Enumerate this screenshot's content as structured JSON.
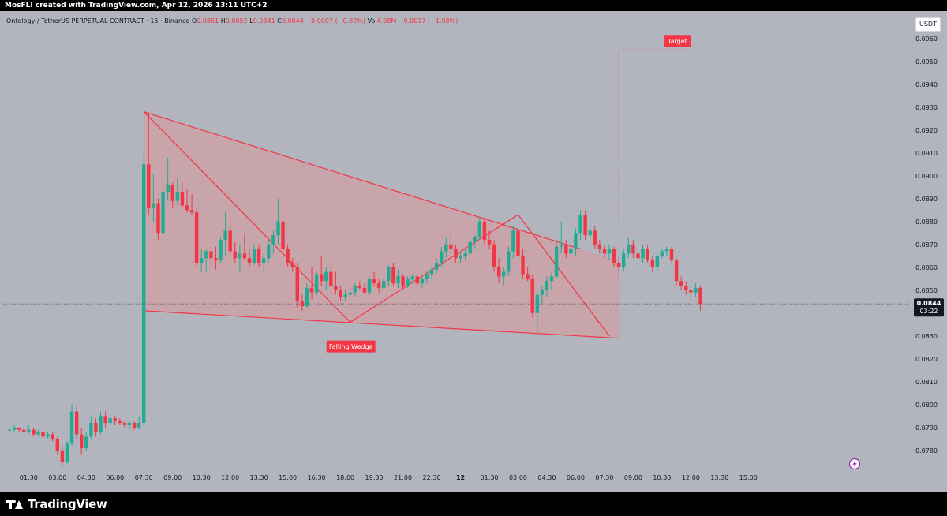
{
  "header": {
    "title": "MosFLI created with TradingView.com, Apr 12, 2026 13:11 UTC+2"
  },
  "legend": {
    "symbol": "Ontology / TetherUS PERPETUAL CONTRACT · 15 · Binance",
    "o_label": "O",
    "o_value": "0.0851",
    "h_label": "H",
    "h_value": "0.0852",
    "l_label": "L",
    "l_value": "0.0841",
    "c_label": "C",
    "c_value": "0.0844",
    "change": "−0.0007 (−0.82%)",
    "vol_label": "Vol",
    "vol_value": "4.98M",
    "vol_change": "−0.0017 (−1.98%)"
  },
  "currency": "USDT",
  "current_price": {
    "price": "0.0844",
    "countdown": "03:22"
  },
  "annotations": {
    "falling_wedge": "Falling Wedge",
    "target": "Target"
  },
  "footer": {
    "brand": "TradingView"
  },
  "colors": {
    "up": "#22ab94",
    "down": "#f23645",
    "background": "#b2b5be",
    "wedge_fill": "#cf9fa4",
    "wedge_line": "#f23645",
    "label_bg": "#f23645"
  },
  "icons": {
    "logo": "tradingview-logo-icon",
    "replay": "lightning-circle-icon"
  },
  "chart_data": {
    "type": "candlestick",
    "title": "",
    "xlabel": "",
    "ylabel": "",
    "y_axis_side": "right",
    "ylim": [
      0.0772,
      0.0972
    ],
    "y_ticks": [
      "0.0780",
      "0.0790",
      "0.0800",
      "0.0810",
      "0.0820",
      "0.0830",
      "0.0840",
      "0.0850",
      "0.0860",
      "0.0870",
      "0.0880",
      "0.0890",
      "0.0900",
      "0.0910",
      "0.0920",
      "0.0930",
      "0.0940",
      "0.0950",
      "0.0960"
    ],
    "x_tick_labels": [
      "01:30",
      "03:00",
      "04:30",
      "06:00",
      "07:30",
      "09:00",
      "10:30",
      "12:00",
      "13:30",
      "15:00",
      "16:30",
      "18:00",
      "19:30",
      "21:00",
      "22:30",
      "12",
      "01:30",
      "03:00",
      "04:30",
      "06:00",
      "07:30",
      "09:00",
      "10:30",
      "12:00",
      "13:30",
      "15:00"
    ],
    "x_tick_positions_index": [
      4,
      10,
      16,
      22,
      28,
      34,
      40,
      46,
      52,
      58,
      64,
      70,
      76,
      82,
      88,
      94,
      100,
      106,
      112,
      118,
      124,
      130,
      136,
      142,
      148,
      154
    ],
    "grid": false,
    "current_price": 0.0844,
    "candles": [
      [
        0.0789,
        0.079,
        0.0788,
        0.0789
      ],
      [
        0.0789,
        0.0791,
        0.0788,
        0.079
      ],
      [
        0.079,
        0.079,
        0.0788,
        0.0789
      ],
      [
        0.0789,
        0.079,
        0.0788,
        0.0788
      ],
      [
        0.0788,
        0.0791,
        0.0787,
        0.0789
      ],
      [
        0.0789,
        0.079,
        0.0786,
        0.0787
      ],
      [
        0.0787,
        0.0789,
        0.0786,
        0.0788
      ],
      [
        0.0788,
        0.0789,
        0.0785,
        0.0786
      ],
      [
        0.0786,
        0.0788,
        0.0785,
        0.0787
      ],
      [
        0.0787,
        0.0788,
        0.0784,
        0.0785
      ],
      [
        0.0785,
        0.0786,
        0.0778,
        0.078
      ],
      [
        0.078,
        0.0782,
        0.0773,
        0.0775
      ],
      [
        0.0775,
        0.0784,
        0.0774,
        0.0783
      ],
      [
        0.0783,
        0.08,
        0.0782,
        0.0797
      ],
      [
        0.0797,
        0.0799,
        0.0785,
        0.0787
      ],
      [
        0.0787,
        0.079,
        0.0778,
        0.0781
      ],
      [
        0.0781,
        0.0788,
        0.078,
        0.0786
      ],
      [
        0.0786,
        0.0795,
        0.0785,
        0.0792
      ],
      [
        0.0792,
        0.0794,
        0.0786,
        0.0788
      ],
      [
        0.0788,
        0.0797,
        0.0787,
        0.0795
      ],
      [
        0.0795,
        0.0797,
        0.079,
        0.0792
      ],
      [
        0.0792,
        0.0796,
        0.0791,
        0.0794
      ],
      [
        0.0794,
        0.0795,
        0.0791,
        0.0793
      ],
      [
        0.0793,
        0.0794,
        0.0791,
        0.0792
      ],
      [
        0.0792,
        0.0793,
        0.079,
        0.0791
      ],
      [
        0.0791,
        0.0793,
        0.0789,
        0.0792
      ],
      [
        0.0792,
        0.0793,
        0.0789,
        0.079
      ],
      [
        0.079,
        0.0795,
        0.0789,
        0.0792
      ],
      [
        0.0792,
        0.091,
        0.0791,
        0.0905
      ],
      [
        0.0905,
        0.0927,
        0.0883,
        0.0886
      ],
      [
        0.0886,
        0.0901,
        0.088,
        0.0888
      ],
      [
        0.0888,
        0.089,
        0.0872,
        0.0875
      ],
      [
        0.0875,
        0.0897,
        0.0874,
        0.0893
      ],
      [
        0.0893,
        0.0908,
        0.0889,
        0.0896
      ],
      [
        0.0896,
        0.0897,
        0.0886,
        0.0889
      ],
      [
        0.0889,
        0.0899,
        0.0887,
        0.0893
      ],
      [
        0.0893,
        0.0897,
        0.0886,
        0.0887
      ],
      [
        0.0887,
        0.0894,
        0.0884,
        0.0885
      ],
      [
        0.0885,
        0.0892,
        0.0883,
        0.0884
      ],
      [
        0.0884,
        0.0886,
        0.086,
        0.0862
      ],
      [
        0.0862,
        0.0868,
        0.0858,
        0.0864
      ],
      [
        0.0864,
        0.0868,
        0.0858,
        0.0867
      ],
      [
        0.0867,
        0.0869,
        0.0861,
        0.0864
      ],
      [
        0.0864,
        0.0869,
        0.0859,
        0.0863
      ],
      [
        0.0863,
        0.0873,
        0.0862,
        0.0872
      ],
      [
        0.0872,
        0.0884,
        0.0865,
        0.0876
      ],
      [
        0.0876,
        0.0881,
        0.0865,
        0.0867
      ],
      [
        0.0867,
        0.0871,
        0.0862,
        0.0864
      ],
      [
        0.0864,
        0.087,
        0.0858,
        0.0866
      ],
      [
        0.0866,
        0.0875,
        0.0863,
        0.0864
      ],
      [
        0.0864,
        0.0868,
        0.086,
        0.0862
      ],
      [
        0.0862,
        0.087,
        0.0861,
        0.0868
      ],
      [
        0.0868,
        0.087,
        0.086,
        0.0862
      ],
      [
        0.0862,
        0.0866,
        0.0858,
        0.0864
      ],
      [
        0.0864,
        0.0872,
        0.0862,
        0.087
      ],
      [
        0.087,
        0.0876,
        0.0866,
        0.0874
      ],
      [
        0.0874,
        0.089,
        0.087,
        0.088
      ],
      [
        0.088,
        0.0882,
        0.0866,
        0.0868
      ],
      [
        0.0868,
        0.087,
        0.086,
        0.0862
      ],
      [
        0.0862,
        0.0864,
        0.0858,
        0.086
      ],
      [
        0.086,
        0.0862,
        0.0842,
        0.0845
      ],
      [
        0.0845,
        0.0848,
        0.0841,
        0.0843
      ],
      [
        0.0843,
        0.0853,
        0.0842,
        0.0851
      ],
      [
        0.0851,
        0.086,
        0.0846,
        0.0849
      ],
      [
        0.0849,
        0.0858,
        0.0848,
        0.0857
      ],
      [
        0.0857,
        0.0865,
        0.0852,
        0.0854
      ],
      [
        0.0854,
        0.086,
        0.085,
        0.0858
      ],
      [
        0.0858,
        0.0861,
        0.0848,
        0.0852
      ],
      [
        0.0852,
        0.0858,
        0.0848,
        0.085
      ],
      [
        0.085,
        0.0852,
        0.0845,
        0.0847
      ],
      [
        0.0847,
        0.085,
        0.0845,
        0.0848
      ],
      [
        0.0848,
        0.0851,
        0.0846,
        0.0849
      ],
      [
        0.0849,
        0.0853,
        0.0847,
        0.0852
      ],
      [
        0.0852,
        0.0854,
        0.085,
        0.0851
      ],
      [
        0.0851,
        0.0853,
        0.0848,
        0.0849
      ],
      [
        0.0849,
        0.0856,
        0.0848,
        0.0855
      ],
      [
        0.0855,
        0.0858,
        0.0852,
        0.0853
      ],
      [
        0.0853,
        0.0855,
        0.0849,
        0.0851
      ],
      [
        0.0851,
        0.0855,
        0.085,
        0.0854
      ],
      [
        0.0854,
        0.0861,
        0.0852,
        0.086
      ],
      [
        0.086,
        0.0862,
        0.0852,
        0.0853
      ],
      [
        0.0853,
        0.0859,
        0.0851,
        0.0856
      ],
      [
        0.0856,
        0.0857,
        0.085,
        0.0852
      ],
      [
        0.0852,
        0.0856,
        0.0851,
        0.0855
      ],
      [
        0.0855,
        0.0857,
        0.0853,
        0.0856
      ],
      [
        0.0856,
        0.0857,
        0.0852,
        0.0853
      ],
      [
        0.0853,
        0.0856,
        0.0851,
        0.0855
      ],
      [
        0.0855,
        0.0858,
        0.0853,
        0.0857
      ],
      [
        0.0857,
        0.086,
        0.0855,
        0.0859
      ],
      [
        0.0859,
        0.0864,
        0.0857,
        0.0862
      ],
      [
        0.0862,
        0.0869,
        0.086,
        0.0867
      ],
      [
        0.0867,
        0.0873,
        0.0864,
        0.087
      ],
      [
        0.087,
        0.0876,
        0.0866,
        0.0868
      ],
      [
        0.0868,
        0.087,
        0.0862,
        0.0864
      ],
      [
        0.0864,
        0.0867,
        0.0862,
        0.0865
      ],
      [
        0.0865,
        0.0868,
        0.0863,
        0.0866
      ],
      [
        0.0866,
        0.0872,
        0.0865,
        0.0871
      ],
      [
        0.0871,
        0.0874,
        0.0868,
        0.0873
      ],
      [
        0.0873,
        0.0882,
        0.0872,
        0.088
      ],
      [
        0.088,
        0.0882,
        0.087,
        0.0872
      ],
      [
        0.0872,
        0.0876,
        0.0868,
        0.087
      ],
      [
        0.087,
        0.0872,
        0.0858,
        0.086
      ],
      [
        0.086,
        0.0864,
        0.0853,
        0.0856
      ],
      [
        0.0856,
        0.086,
        0.0852,
        0.0858
      ],
      [
        0.0858,
        0.0869,
        0.0856,
        0.0867
      ],
      [
        0.0867,
        0.0878,
        0.0864,
        0.0876
      ],
      [
        0.0876,
        0.0878,
        0.0863,
        0.0865
      ],
      [
        0.0865,
        0.0868,
        0.0855,
        0.0857
      ],
      [
        0.0857,
        0.086,
        0.0854,
        0.0855
      ],
      [
        0.0855,
        0.0857,
        0.0838,
        0.084
      ],
      [
        0.084,
        0.085,
        0.0831,
        0.0848
      ],
      [
        0.0848,
        0.0852,
        0.0844,
        0.085
      ],
      [
        0.085,
        0.0856,
        0.0847,
        0.0854
      ],
      [
        0.0854,
        0.0858,
        0.085,
        0.0856
      ],
      [
        0.0856,
        0.0872,
        0.0855,
        0.0869
      ],
      [
        0.0869,
        0.088,
        0.0866,
        0.087
      ],
      [
        0.087,
        0.0872,
        0.0864,
        0.0866
      ],
      [
        0.0866,
        0.087,
        0.086,
        0.0868
      ],
      [
        0.0868,
        0.0877,
        0.0865,
        0.0875
      ],
      [
        0.0875,
        0.0885,
        0.0872,
        0.0883
      ],
      [
        0.0883,
        0.0885,
        0.0872,
        0.0874
      ],
      [
        0.0874,
        0.088,
        0.087,
        0.0876
      ],
      [
        0.0876,
        0.0878,
        0.0868,
        0.087
      ],
      [
        0.087,
        0.0872,
        0.0866,
        0.0868
      ],
      [
        0.0868,
        0.087,
        0.0864,
        0.0866
      ],
      [
        0.0866,
        0.087,
        0.0863,
        0.0868
      ],
      [
        0.0868,
        0.0869,
        0.086,
        0.0862
      ],
      [
        0.0862,
        0.0865,
        0.0857,
        0.086
      ],
      [
        0.086,
        0.0868,
        0.0858,
        0.0866
      ],
      [
        0.0866,
        0.0873,
        0.0864,
        0.087
      ],
      [
        0.087,
        0.0872,
        0.0864,
        0.0866
      ],
      [
        0.0866,
        0.0869,
        0.0862,
        0.0864
      ],
      [
        0.0864,
        0.087,
        0.0862,
        0.0868
      ],
      [
        0.0868,
        0.087,
        0.0862,
        0.0863
      ],
      [
        0.0863,
        0.0865,
        0.0858,
        0.086
      ],
      [
        0.086,
        0.0866,
        0.0858,
        0.0865
      ],
      [
        0.0865,
        0.0868,
        0.0864,
        0.0867
      ],
      [
        0.0867,
        0.0869,
        0.0865,
        0.0868
      ],
      [
        0.0868,
        0.0869,
        0.0862,
        0.0863
      ],
      [
        0.0863,
        0.0864,
        0.0852,
        0.0854
      ],
      [
        0.0854,
        0.0856,
        0.085,
        0.0852
      ],
      [
        0.0852,
        0.0854,
        0.0848,
        0.085
      ],
      [
        0.085,
        0.0852,
        0.0846,
        0.0849
      ],
      [
        0.0849,
        0.0853,
        0.0847,
        0.0851
      ],
      [
        0.0851,
        0.0852,
        0.0841,
        0.0844
      ]
    ],
    "wedge": {
      "upper_line": [
        [
          28,
          0.0928
        ],
        [
          119,
          0.0868
        ]
      ],
      "lower_line": [
        [
          28,
          0.0841
        ],
        [
          127,
          0.0829
        ]
      ],
      "zigzag": [
        [
          28,
          0.0928
        ],
        [
          71,
          0.0836
        ],
        [
          106,
          0.0883
        ],
        [
          125,
          0.083
        ]
      ],
      "target_from": [
        127,
        0.088
      ],
      "target_level": 0.0955
    }
  }
}
